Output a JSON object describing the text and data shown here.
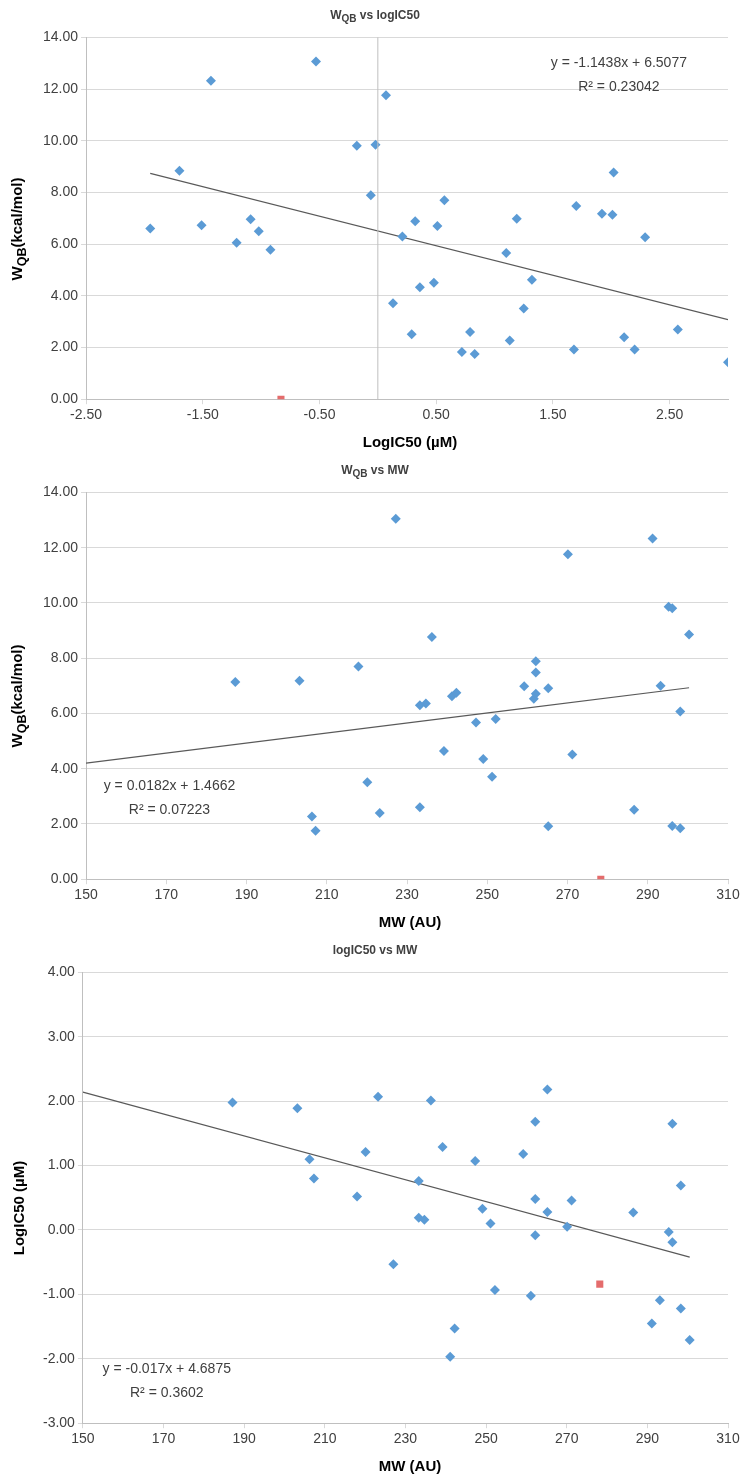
{
  "chart_data": [
    {
      "type": "scatter",
      "title": "W$_{QB}$ vs logIC50",
      "xlabel": "LogIC50 (µM)",
      "ylabel": "W$_{QB}$(kcal/mol)",
      "xlim": [
        -2.5,
        3.0
      ],
      "xticks": [
        {
          "value": -2.5,
          "label": "-2.50"
        },
        {
          "value": -1.5,
          "label": "-1.50"
        },
        {
          "value": -0.5,
          "label": "-0.50"
        },
        {
          "value": 0.5,
          "label": "0.50"
        },
        {
          "value": 1.5,
          "label": "1.50"
        },
        {
          "value": 2.5,
          "label": "2.50"
        }
      ],
      "ylim": [
        0,
        14
      ],
      "yticks": [
        {
          "value": 0,
          "label": "0.00"
        },
        {
          "value": 2,
          "label": "2.00"
        },
        {
          "value": 4,
          "label": "4.00"
        },
        {
          "value": 6,
          "label": "6.00"
        },
        {
          "value": 8,
          "label": "8.00"
        },
        {
          "value": 10,
          "label": "10.00"
        },
        {
          "value": 12,
          "label": "12.00"
        },
        {
          "value": 14,
          "label": "14.00"
        }
      ],
      "grid": "y",
      "ref_lines": [
        {
          "axis": "x",
          "value": 0,
          "color": "#bfbfbf"
        }
      ],
      "series": [
        {
          "type": "scatter",
          "marker": "diamond",
          "color": "#5b9bd5",
          "x": [
            -1.95,
            -1.7,
            -1.51,
            -1.43,
            -1.21,
            -1.09,
            -1.02,
            -0.92,
            -0.53,
            -0.18,
            -0.02,
            -0.06,
            0.07,
            0.13,
            0.21,
            0.29,
            0.32,
            0.36,
            0.48,
            0.51,
            0.57,
            0.72,
            0.79,
            0.83,
            1.1,
            1.13,
            1.19,
            1.25,
            1.32,
            1.68,
            1.7,
            1.92,
            2.01,
            2.02,
            2.11,
            2.2,
            2.29,
            2.57,
            3.0
          ],
          "values": [
            6.61,
            8.84,
            6.73,
            12.32,
            6.05,
            6.96,
            6.5,
            5.78,
            13.07,
            9.81,
            9.85,
            7.89,
            11.76,
            3.71,
            6.3,
            2.51,
            6.89,
            4.33,
            4.51,
            6.7,
            7.7,
            1.83,
            2.6,
            1.75,
            5.66,
            2.27,
            6.98,
            3.51,
            4.62,
            1.92,
            7.48,
            7.18,
            7.14,
            8.77,
            2.4,
            1.92,
            6.27,
            2.7,
            1.43
          ]
        },
        {
          "type": "scatter",
          "marker": "square",
          "color": "#e46c6c",
          "x": [
            -0.83
          ],
          "values": [
            0
          ]
        },
        {
          "type": "line",
          "marker": "none",
          "color": "#595959",
          "x": [
            -1.95,
            3.0
          ],
          "values": [
            8.74,
            3.08
          ]
        }
      ],
      "annotations": [
        "y = -1.1438x + 6.5077",
        "R² = 0.23042"
      ]
    },
    {
      "type": "scatter",
      "title": "W$_{QB}$ vs MW",
      "xlabel": "MW (AU)",
      "ylabel": "W$_{QB}$(kcal/mol)",
      "xlim": [
        150,
        310
      ],
      "xticks": [
        150,
        170,
        190,
        210,
        230,
        250,
        270,
        290,
        310
      ],
      "ylim": [
        0,
        14
      ],
      "yticks": [
        {
          "value": 0,
          "label": "0.00"
        },
        {
          "value": 2,
          "label": "2.00"
        },
        {
          "value": 4,
          "label": "4.00"
        },
        {
          "value": 6,
          "label": "6.00"
        },
        {
          "value": 8,
          "label": "8.00"
        },
        {
          "value": 10,
          "label": "10.00"
        },
        {
          "value": 12,
          "label": "12.00"
        },
        {
          "value": 14,
          "label": "14.00"
        }
      ],
      "grid": "y",
      "series": [
        {
          "type": "scatter",
          "marker": "diamond",
          "color": "#5b9bd5",
          "x": [
            187.2,
            203.2,
            206.3,
            207.2,
            217.9,
            220.1,
            223.2,
            227.2,
            233.2,
            233.2,
            234.7,
            236.2,
            239.2,
            241.2,
            242.3,
            247.2,
            249.0,
            251.2,
            252.1,
            259.2,
            261.6,
            262.1,
            262.1,
            262.1,
            265.2,
            265.2,
            270.1,
            271.2,
            286.6,
            291.2,
            293.2,
            295.2,
            296.1,
            296.1,
            298.1,
            298.1,
            300.3
          ],
          "values": [
            7.14,
            7.18,
            2.27,
            1.75,
            7.7,
            3.51,
            2.4,
            13.05,
            2.6,
            6.3,
            6.36,
            8.77,
            4.64,
            6.62,
            6.75,
            5.67,
            4.35,
            3.71,
            5.8,
            6.98,
            6.53,
            6.71,
            7.48,
            7.89,
            6.91,
            1.92,
            11.76,
            4.51,
            2.51,
            12.33,
            7.0,
            9.86,
            9.81,
            1.93,
            1.84,
            6.07,
            8.86
          ]
        },
        {
          "type": "scatter",
          "marker": "square",
          "color": "#e46c6c",
          "x": [
            278.3
          ],
          "values": [
            0
          ]
        },
        {
          "type": "line",
          "marker": "none",
          "color": "#595959",
          "x": [
            150,
            300.3
          ],
          "values": [
            4.2,
            6.93
          ]
        }
      ],
      "annotations": [
        "y = 0.0182x + 1.4662",
        "R² = 0.07223"
      ]
    },
    {
      "type": "scatter",
      "title": "logIC50 vs MW",
      "xlabel": "MW (AU)",
      "ylabel": "LogIC50 (µM)",
      "xlim": [
        150,
        310
      ],
      "xticks": [
        150,
        170,
        190,
        210,
        230,
        250,
        270,
        290,
        310
      ],
      "ylim": [
        -3,
        4
      ],
      "yticks": [
        {
          "value": -3,
          "label": "-3.00"
        },
        {
          "value": -2,
          "label": "-2.00"
        },
        {
          "value": -1,
          "label": "-1.00"
        },
        {
          "value": 0,
          "label": "0.00"
        },
        {
          "value": 1,
          "label": "1.00"
        },
        {
          "value": 2,
          "label": "2.00"
        },
        {
          "value": 3,
          "label": "3.00"
        },
        {
          "value": 4,
          "label": "4.00"
        }
      ],
      "grid": "y",
      "series": [
        {
          "type": "scatter",
          "marker": "diamond",
          "color": "#5b9bd5",
          "x": [
            187.1,
            203.2,
            206.2,
            207.3,
            218.0,
            220.1,
            223.2,
            227.0,
            233.3,
            233.3,
            234.7,
            236.3,
            239.2,
            241.1,
            242.2,
            247.3,
            249.1,
            251.1,
            252.2,
            259.2,
            261.1,
            262.2,
            262.2,
            262.2,
            265.2,
            265.2,
            270.1,
            271.2,
            286.5,
            291.1,
            293.1,
            295.3,
            296.2,
            296.2,
            298.3,
            298.3,
            300.5
          ],
          "values": [
            1.98,
            1.89,
            1.1,
            0.8,
            0.52,
            1.21,
            2.07,
            -0.53,
            0.76,
            0.19,
            0.16,
            2.01,
            1.29,
            -1.97,
            -1.53,
            1.07,
            0.33,
            0.1,
            -0.93,
            1.18,
            -1.02,
            1.68,
            0.48,
            -0.08,
            2.18,
            0.28,
            0.05,
            0.46,
            0.27,
            -1.45,
            -1.09,
            -0.03,
            -0.19,
            1.65,
            -1.22,
            0.69,
            -1.71
          ]
        },
        {
          "type": "scatter",
          "marker": "square",
          "color": "#e46c6c",
          "x": [
            278.2
          ],
          "values": [
            -0.84
          ]
        },
        {
          "type": "line",
          "marker": "none",
          "color": "#595959",
          "x": [
            150,
            300.5
          ],
          "values": [
            2.14,
            -0.42
          ]
        }
      ],
      "annotations": [
        "y = -0.017x + 4.6875",
        "R² = 0.3602"
      ]
    }
  ]
}
